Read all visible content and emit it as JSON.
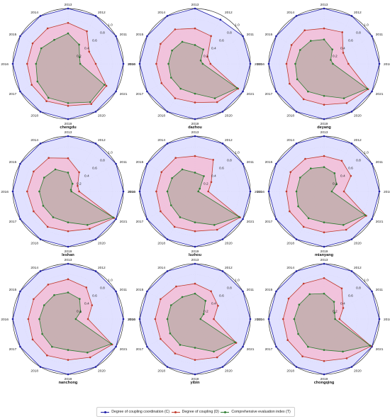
{
  "chart_data": {
    "type": "radar",
    "axis_categories": [
      "2013",
      "2012",
      "2011",
      "2010",
      "2021",
      "2020",
      "2019",
      "2018",
      "2017",
      "2016",
      "2015",
      "2014"
    ],
    "radial_ticks": [
      0.2,
      0.4,
      0.6,
      0.8,
      1.0
    ],
    "rlim": [
      0,
      1.0
    ],
    "grid": true,
    "legend_position": "bottom-center",
    "series_colors": {
      "C": "#1a1aa6",
      "D": "#c0392b",
      "T": "#2e7d32",
      "fill_C": "#dcdcff",
      "fill_D": "#f5b8d0",
      "fill_T": "#b9aaa5"
    },
    "legend": [
      {
        "key": "C",
        "label": "Degree of coupling coordination (C)"
      },
      {
        "key": "D",
        "label": "Degree of coupling (D)"
      },
      {
        "key": "T",
        "label": "Comprehensive evaluation index (T)"
      }
    ],
    "panels": [
      {
        "name": "chengdu",
        "C": [
          1.0,
          1.0,
          1.0,
          1.0,
          1.0,
          1.0,
          1.0,
          1.0,
          1.0,
          1.0,
          1.0,
          1.0
        ],
        "D": [
          0.74,
          0.68,
          0.44,
          0.5,
          0.8,
          0.84,
          0.76,
          0.78,
          0.76,
          0.74,
          0.74,
          0.74
        ],
        "T": [
          0.55,
          0.4,
          0.24,
          0.22,
          0.76,
          0.8,
          0.71,
          0.71,
          0.64,
          0.58,
          0.56,
          0.5
        ]
      },
      {
        "name": "dazhou",
        "C": [
          1.0,
          0.92,
          1.0,
          1.0,
          1.0,
          1.0,
          1.0,
          1.0,
          1.0,
          1.0,
          1.0,
          1.0
        ],
        "D": [
          0.64,
          0.58,
          0.26,
          0.28,
          0.9,
          0.8,
          0.7,
          0.72,
          0.7,
          0.7,
          0.72,
          0.72
        ],
        "T": [
          0.34,
          0.3,
          0.12,
          0.14,
          0.88,
          0.72,
          0.54,
          0.52,
          0.5,
          0.48,
          0.48,
          0.46
        ]
      },
      {
        "name": "deyang",
        "C": [
          1.0,
          1.0,
          1.0,
          1.0,
          1.0,
          1.0,
          1.0,
          1.0,
          1.0,
          1.0,
          1.0,
          1.0
        ],
        "D": [
          0.64,
          0.66,
          0.4,
          0.44,
          0.92,
          0.82,
          0.74,
          0.74,
          0.72,
          0.68,
          0.68,
          0.7
        ],
        "T": [
          0.44,
          0.3,
          0.14,
          0.16,
          0.9,
          0.72,
          0.58,
          0.58,
          0.56,
          0.52,
          0.5,
          0.48
        ]
      },
      {
        "name": "leshan",
        "C": [
          1.0,
          1.0,
          1.0,
          1.0,
          1.0,
          1.0,
          1.0,
          1.0,
          1.0,
          1.0,
          1.0,
          1.0
        ],
        "D": [
          0.6,
          0.4,
          0.2,
          0.2,
          0.96,
          0.78,
          0.72,
          0.74,
          0.72,
          0.74,
          0.72,
          0.7
        ],
        "T": [
          0.34,
          0.16,
          0.06,
          0.06,
          0.94,
          0.7,
          0.56,
          0.54,
          0.52,
          0.52,
          0.5,
          0.46
        ]
      },
      {
        "name": "luzhou",
        "C": [
          1.0,
          1.0,
          1.0,
          1.0,
          1.0,
          1.0,
          1.0,
          1.0,
          1.0,
          1.0,
          1.0,
          1.0
        ],
        "D": [
          0.64,
          0.66,
          0.34,
          0.24,
          0.94,
          0.8,
          0.72,
          0.74,
          0.72,
          0.7,
          0.7,
          0.7
        ],
        "T": [
          0.34,
          0.32,
          0.1,
          0.06,
          0.92,
          0.7,
          0.56,
          0.54,
          0.5,
          0.5,
          0.48,
          0.46
        ]
      },
      {
        "name": "mianyang",
        "C": [
          1.0,
          1.0,
          1.0,
          1.0,
          1.0,
          1.0,
          1.0,
          1.0,
          1.0,
          1.0,
          1.0,
          1.0
        ],
        "D": [
          0.64,
          0.64,
          0.56,
          0.36,
          0.88,
          0.8,
          0.74,
          0.74,
          0.72,
          0.68,
          0.7,
          0.68
        ],
        "T": [
          0.44,
          0.38,
          0.26,
          0.14,
          0.86,
          0.7,
          0.56,
          0.56,
          0.54,
          0.5,
          0.5,
          0.48
        ]
      },
      {
        "name": "nanchong",
        "C": [
          1.0,
          1.0,
          1.0,
          1.0,
          1.0,
          1.0,
          1.0,
          1.0,
          1.0,
          1.0,
          1.0,
          1.0
        ],
        "D": [
          0.72,
          0.66,
          0.5,
          0.36,
          0.92,
          0.8,
          0.74,
          0.76,
          0.74,
          0.72,
          0.72,
          0.72
        ],
        "T": [
          0.48,
          0.42,
          0.26,
          0.14,
          0.9,
          0.7,
          0.56,
          0.58,
          0.54,
          0.52,
          0.5,
          0.5
        ]
      },
      {
        "name": "yibin",
        "C": [
          1.0,
          1.0,
          1.0,
          1.0,
          1.0,
          1.0,
          1.0,
          1.0,
          1.0,
          1.0,
          1.0,
          1.0
        ],
        "D": [
          0.64,
          0.58,
          0.48,
          0.34,
          0.86,
          0.8,
          0.74,
          0.72,
          0.72,
          0.72,
          0.72,
          0.68
        ],
        "T": [
          0.46,
          0.38,
          0.18,
          0.1,
          0.84,
          0.68,
          0.52,
          0.54,
          0.52,
          0.5,
          0.5,
          0.46
        ]
      },
      {
        "name": "chongqing",
        "C": [
          1.0,
          1.0,
          1.0,
          1.0,
          1.0,
          1.0,
          1.0,
          1.0,
          1.0,
          1.0,
          1.0,
          1.0
        ],
        "D": [
          0.74,
          0.64,
          0.4,
          0.28,
          0.98,
          0.82,
          0.76,
          0.78,
          0.76,
          0.74,
          0.74,
          0.74
        ],
        "T": [
          0.46,
          0.36,
          0.22,
          0.2,
          0.96,
          0.68,
          0.56,
          0.58,
          0.54,
          0.54,
          0.52,
          0.52
        ]
      }
    ]
  }
}
